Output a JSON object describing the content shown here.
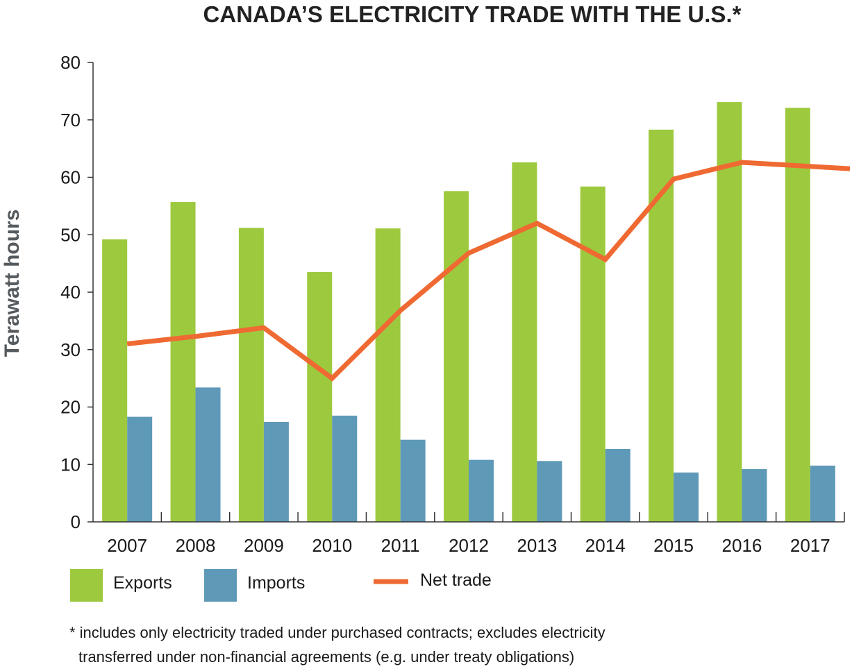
{
  "chart_data": {
    "type": "bar",
    "title": "CANADA’S ELECTRICITY TRADE WITH THE U.S.*",
    "ylabel": "Terawatt hours",
    "xlabel": "",
    "ylim": [
      0,
      80
    ],
    "yticks": [
      "0",
      "10",
      "20",
      "30",
      "40",
      "50",
      "60",
      "70",
      "80"
    ],
    "categories": [
      "2007",
      "2008",
      "2009",
      "2010",
      "2011",
      "2012",
      "2013",
      "2014",
      "2015",
      "2016",
      "2017"
    ],
    "series": [
      {
        "name": "Exports",
        "type": "bar",
        "color": "#9dc93e",
        "values": [
          49.2,
          55.7,
          51.2,
          43.5,
          51.1,
          57.6,
          62.6,
          58.4,
          68.3,
          73.1,
          72.1
        ]
      },
      {
        "name": "Imports",
        "type": "bar",
        "color": "#5f99b8",
        "values": [
          18.3,
          23.4,
          17.4,
          18.5,
          14.3,
          10.8,
          10.6,
          12.7,
          8.6,
          9.2,
          9.8
        ]
      },
      {
        "name": "Net trade",
        "type": "line",
        "color": "#ef6a32",
        "values": [
          31.0,
          32.3,
          33.8,
          25.0,
          36.8,
          46.8,
          52.0,
          45.7,
          59.7,
          62.6,
          61.5
        ]
      }
    ],
    "legend_position": "bottom",
    "grid": false,
    "footnote": [
      "* includes only electricity traded under purchased contracts; excludes electricity",
      "transferred under non-financial agreements (e.g. under treaty obligations)"
    ]
  }
}
